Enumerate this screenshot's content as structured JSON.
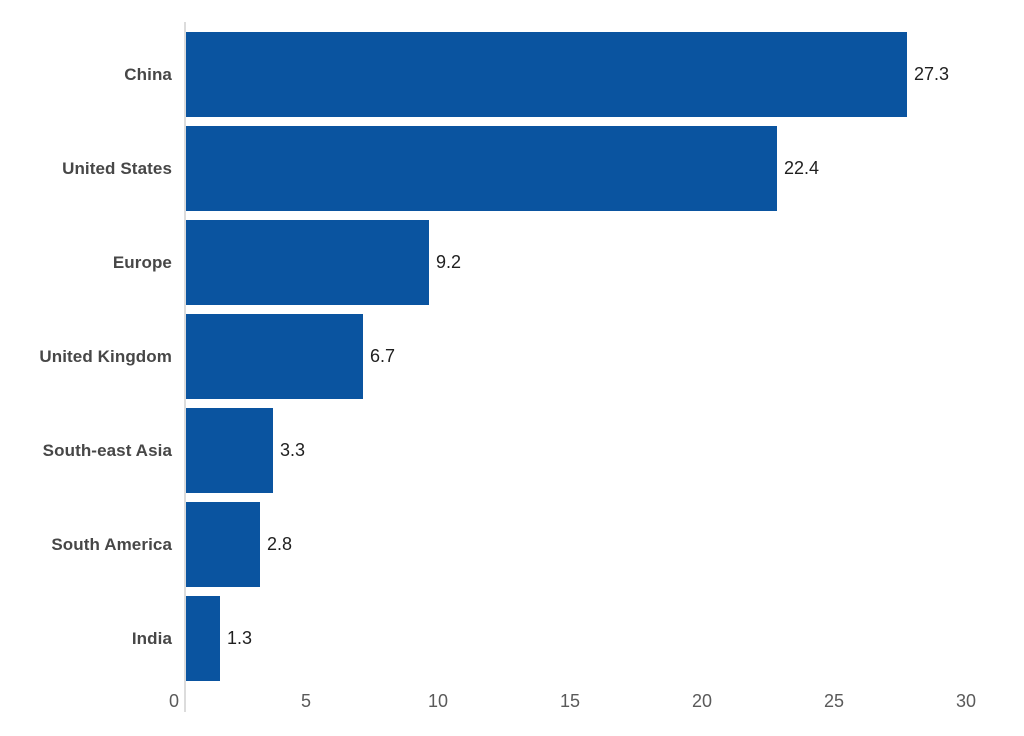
{
  "chart_data": {
    "type": "bar",
    "orientation": "horizontal",
    "title": "",
    "xlabel": "",
    "ylabel": "",
    "categories": [
      "China",
      "United States",
      "Europe",
      "United Kingdom",
      "South-east Asia",
      "South America",
      "India"
    ],
    "values": [
      27.3,
      22.4,
      9.2,
      6.7,
      3.3,
      2.8,
      1.3
    ],
    "value_labels": [
      "27.3",
      "22.4",
      "9.2",
      "6.7",
      "3.3",
      "2.8",
      "1.3"
    ],
    "xlim": [
      0,
      30
    ],
    "x_ticks": [
      "0",
      "5",
      "10",
      "15",
      "20",
      "25",
      "30"
    ],
    "x_tick_values": [
      0,
      5,
      10,
      15,
      20,
      25,
      30
    ],
    "grid": false,
    "legend": "none",
    "colors": {
      "bar": "#0a54a0",
      "axis_line": "#dcdcdc",
      "category_label": "#474747",
      "value_label": "#1f1f1f",
      "tick_label": "#5a5a5a",
      "background": "#ffffff"
    }
  }
}
